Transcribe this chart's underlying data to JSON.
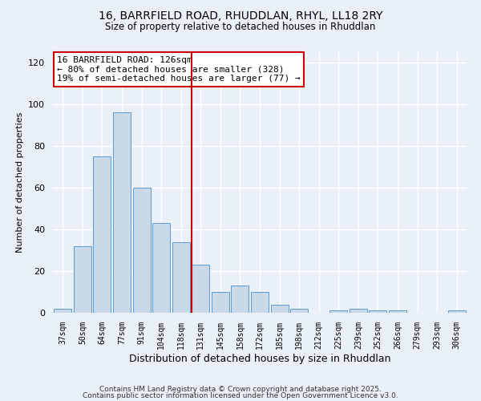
{
  "title": "16, BARRFIELD ROAD, RHUDDLAN, RHYL, LL18 2RY",
  "subtitle": "Size of property relative to detached houses in Rhuddlan",
  "xlabel": "Distribution of detached houses by size in Rhuddlan",
  "ylabel": "Number of detached properties",
  "bar_labels": [
    "37sqm",
    "50sqm",
    "64sqm",
    "77sqm",
    "91sqm",
    "104sqm",
    "118sqm",
    "131sqm",
    "145sqm",
    "158sqm",
    "172sqm",
    "185sqm",
    "198sqm",
    "212sqm",
    "225sqm",
    "239sqm",
    "252sqm",
    "266sqm",
    "279sqm",
    "293sqm",
    "306sqm"
  ],
  "bar_heights": [
    2,
    32,
    75,
    96,
    60,
    43,
    34,
    23,
    10,
    13,
    10,
    4,
    2,
    0,
    1,
    2,
    1,
    1,
    0,
    0,
    1
  ],
  "bar_color": "#c9d9e8",
  "bar_edgecolor": "#5b9bd5",
  "vline_x_index": 7,
  "vline_color": "#cc0000",
  "annotation_line1": "16 BARRFIELD ROAD: 126sqm",
  "annotation_line2": "← 80% of detached houses are smaller (328)",
  "annotation_line3": "19% of semi-detached houses are larger (77) →",
  "annotation_box_color": "#cc0000",
  "footer_line1": "Contains HM Land Registry data © Crown copyright and database right 2025.",
  "footer_line2": "Contains public sector information licensed under the Open Government Licence v3.0.",
  "background_color": "#eaf0f8",
  "ylim": [
    0,
    125
  ],
  "yticks": [
    0,
    20,
    40,
    60,
    80,
    100,
    120
  ]
}
